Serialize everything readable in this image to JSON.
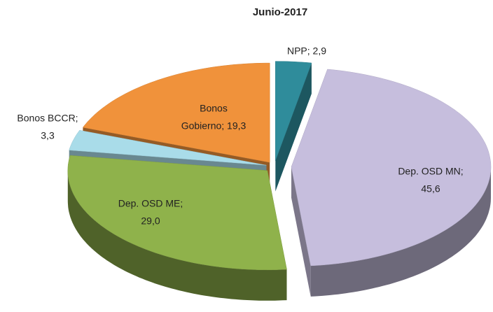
{
  "chart_data": {
    "type": "pie",
    "title": "Junio-2017",
    "categories": [
      "NPP",
      "Dep. OSD MN",
      "Dep. OSD ME",
      "Bonos BCCR",
      "Bonos Gobierno"
    ],
    "values": [
      2.9,
      45.6,
      29.0,
      3.3,
      19.3
    ],
    "value_labels": [
      [
        "NPP; 2,9"
      ],
      [
        "Dep. OSD MN;",
        "45,6"
      ],
      [
        "Dep. OSD ME;",
        "29,0"
      ],
      [
        "Bonos BCCR;",
        "3,3"
      ],
      [
        "Bonos",
        "Gobierno; 19,3"
      ]
    ],
    "colors": [
      "#2f8c9b",
      "#c6bedd",
      "#8fb24b",
      "#a9dce9",
      "#f0923b"
    ]
  }
}
